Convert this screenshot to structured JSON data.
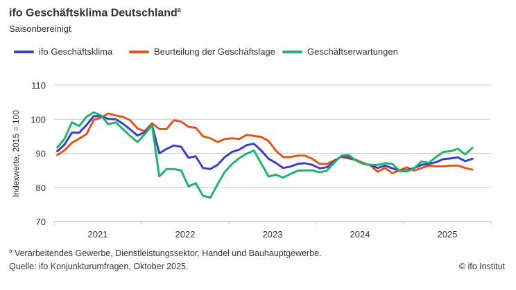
{
  "header": {
    "title": "ifo Geschäftsklima Deutschland",
    "title_superscript": "a",
    "subtitle": "Saisonbereinigt"
  },
  "footer": {
    "footnote_marker": "a",
    "footnote": "Verarbeitendes Gewerbe, Dienstleistungssektor, Handel und Bauhauptgewerbe.",
    "source": "Quelle: ifo Konjunkturumfragen, Oktober 2025.",
    "copyright": "© ifo Institut"
  },
  "chart_data": {
    "type": "line",
    "title": "ifo Geschäftsklima Deutschland",
    "subtitle": "Saisonbereinigt",
    "ylabel": "Indexwerte, 2015 = 100",
    "xlabel": "",
    "x_start": "2021-01",
    "x_end": "2025-10",
    "x_frequency": "monthly",
    "x_ticks": [
      "2021",
      "2022",
      "2023",
      "2024",
      "2025"
    ],
    "ylim": [
      70,
      110
    ],
    "y_ticks": [
      "70",
      "80",
      "90",
      "100",
      "110"
    ],
    "grid": "horizontal",
    "legend_position": "top-left",
    "series": [
      {
        "name": "ifo Geschäftsklima",
        "color": "#3b3fc6",
        "values": [
          90.6,
          92.6,
          96.1,
          96.0,
          98.3,
          100.9,
          100.9,
          100.1,
          100.0,
          98.7,
          97.0,
          95.2,
          96.2,
          98.3,
          90.0,
          91.3,
          92.3,
          91.9,
          88.7,
          89.1,
          85.7,
          85.4,
          86.6,
          88.9,
          90.4,
          91.1,
          92.4,
          92.8,
          90.8,
          88.4,
          87.2,
          85.7,
          86.1,
          86.9,
          87.1,
          86.6,
          85.6,
          85.9,
          87.6,
          89.1,
          88.9,
          87.9,
          86.9,
          86.6,
          85.7,
          86.4,
          85.6,
          84.9,
          85.0,
          85.7,
          86.6,
          86.9,
          87.4,
          88.3,
          88.5,
          88.8,
          87.7,
          88.4
        ]
      },
      {
        "name": "Beurteilung der Geschäftslage",
        "color": "#e2561c",
        "values": [
          89.5,
          90.9,
          93.1,
          94.3,
          95.6,
          99.8,
          100.5,
          101.7,
          101.1,
          100.7,
          99.7,
          97.3,
          96.5,
          98.8,
          97.1,
          97.1,
          99.7,
          99.3,
          97.8,
          97.5,
          95.0,
          94.4,
          93.3,
          94.2,
          94.4,
          94.2,
          95.4,
          95.1,
          94.8,
          93.6,
          90.8,
          88.9,
          88.9,
          89.3,
          89.3,
          88.4,
          86.9,
          86.9,
          87.9,
          88.9,
          88.5,
          88.1,
          87.2,
          86.4,
          84.6,
          85.7,
          84.2,
          85.0,
          85.9,
          84.9,
          85.7,
          86.4,
          86.2,
          86.2,
          86.4,
          86.4,
          85.7,
          85.2
        ]
      },
      {
        "name": "Geschäftserwartungen",
        "color": "#22b36a",
        "values": [
          91.7,
          94.3,
          99.1,
          98.0,
          100.7,
          102.0,
          101.1,
          98.5,
          99.1,
          97.1,
          95.1,
          93.3,
          95.6,
          98.2,
          83.2,
          85.4,
          85.4,
          85.0,
          80.3,
          81.2,
          77.5,
          77.0,
          80.9,
          84.6,
          86.9,
          88.6,
          89.9,
          90.8,
          87.0,
          83.2,
          83.7,
          82.9,
          83.9,
          84.9,
          85.0,
          85.0,
          84.4,
          84.9,
          87.2,
          89.3,
          89.5,
          87.9,
          86.9,
          86.6,
          86.6,
          87.1,
          86.9,
          84.8,
          84.7,
          85.6,
          87.6,
          87.2,
          88.9,
          90.4,
          90.6,
          91.3,
          89.7,
          91.6
        ]
      }
    ]
  }
}
